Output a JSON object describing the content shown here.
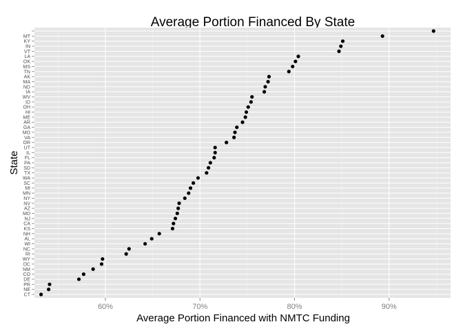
{
  "chart_data": {
    "type": "scatter",
    "title": "Average Portion Financed By State",
    "xlabel": "Average Portion Financed with NMTC Funding",
    "ylabel": "State",
    "xlim": [
      52.5,
      96.5
    ],
    "x_ticks": [
      60,
      70,
      80,
      90
    ],
    "x_tick_labels": [
      "60%",
      "70%",
      "80%",
      "90%"
    ],
    "grid": true,
    "colors": {
      "panel": "#e5e5e5",
      "grid_major": "#ffffff",
      "grid_minor": "#f2f2f2",
      "point": "#000000"
    },
    "categories": [
      "CT",
      "NE",
      "PR",
      "DE",
      "CO",
      "NM",
      "DC",
      "WY",
      "RI",
      "NC",
      "WI",
      "AL",
      "NH",
      "KS",
      "CA",
      "NJ",
      "MD",
      "AZ",
      "NV",
      "NY",
      "MN",
      "MI",
      "SC",
      "WA",
      "TX",
      "SD",
      "PA",
      "FL",
      "IL",
      "UT",
      "OR",
      "VA",
      "MO",
      "GA",
      "AR",
      "ME",
      "HI",
      "OH",
      "ID",
      "WV",
      "IA",
      "ND",
      "MA",
      "AK",
      "TN",
      "MS",
      "OK",
      "LA",
      "VT",
      "IN",
      "KY",
      "MT",
      ""
    ],
    "values": [
      53.2,
      54.0,
      54.1,
      57.2,
      57.7,
      58.7,
      59.6,
      59.7,
      62.2,
      62.5,
      64.2,
      64.9,
      65.7,
      67.1,
      67.2,
      67.4,
      67.6,
      67.7,
      67.8,
      68.4,
      68.8,
      69.0,
      69.3,
      69.8,
      70.7,
      70.9,
      71.1,
      71.5,
      71.6,
      71.6,
      72.8,
      73.6,
      73.7,
      73.9,
      74.5,
      74.8,
      74.9,
      75.1,
      75.4,
      75.5,
      76.8,
      76.9,
      77.2,
      77.3,
      79.4,
      79.8,
      80.1,
      80.4,
      84.7,
      84.9,
      85.1,
      89.3,
      94.7
    ]
  }
}
